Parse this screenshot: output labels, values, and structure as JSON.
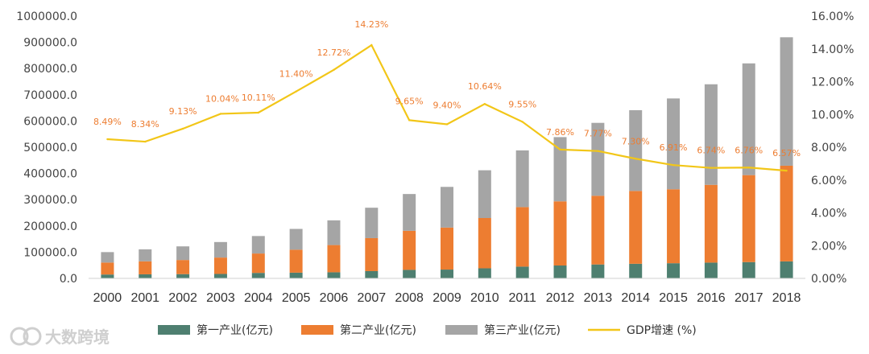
{
  "chart_data": {
    "type": "bar",
    "stacked": true,
    "categories": [
      "2000",
      "2001",
      "2002",
      "2003",
      "2004",
      "2005",
      "2006",
      "2007",
      "2008",
      "2009",
      "2010",
      "2011",
      "2012",
      "2013",
      "2014",
      "2015",
      "2016",
      "2017",
      "2018"
    ],
    "series": [
      {
        "name": "第一产业(亿元)",
        "color": "#4e7f70",
        "values": [
          14717,
          15502,
          16190,
          16970,
          20904,
          21806,
          23317,
          27674,
          32464,
          33584,
          38430,
          44781,
          49084,
          53028,
          55626,
          57774,
          60139,
          62100,
          64734
        ]
      },
      {
        "name": "第二产业(亿元)",
        "color": "#ed7d31",
        "values": [
          45555,
          49512,
          53897,
          62436,
          73904,
          87598,
          103719,
          125831,
          149003,
          160172,
          191630,
          227039,
          244643,
          261956,
          277572,
          282040,
          296548,
          331581,
          364835
        ]
      },
      {
        "name": "第三产业(亿元)",
        "color": "#a5a5a5",
        "values": [
          39897,
          45701,
          51947,
          59115,
          66649,
          79191,
          94231,
          115925,
          140179,
          155058,
          182102,
          216099,
          244852,
          277948,
          308059,
          346150,
          383374,
          426000,
          489701
        ]
      }
    ],
    "line_series": {
      "name": "GDP增速 (%)",
      "color": "#f2c618",
      "values": [
        8.49,
        8.34,
        9.13,
        10.04,
        10.11,
        11.4,
        12.72,
        14.23,
        9.65,
        9.4,
        10.64,
        9.55,
        7.86,
        7.77,
        7.3,
        6.91,
        6.74,
        6.76,
        6.57
      ],
      "labels": [
        "8.49%",
        "8.34%",
        "9.13%",
        "10.04%",
        "10.11%",
        "11.40%",
        "12.72%",
        "14.23%",
        "9.65%",
        "9.40%",
        "10.64%",
        "9.55%",
        "7.86%",
        "7.77%",
        "7.30%",
        "6.91%",
        "6.74%",
        "6.76%",
        "6.57%"
      ]
    },
    "y_left": {
      "min": 0,
      "max": 1000000,
      "ticks": [
        "0.0",
        "100000.0",
        "200000.0",
        "300000.0",
        "400000.0",
        "500000.0",
        "600000.0",
        "700000.0",
        "800000.0",
        "900000.0",
        "1000000.0"
      ]
    },
    "y_right": {
      "min": 0,
      "max": 16,
      "ticks": [
        "0.00%",
        "2.00%",
        "4.00%",
        "6.00%",
        "8.00%",
        "10.00%",
        "12.00%",
        "14.00%",
        "16.00%"
      ]
    },
    "legend_position": "bottom",
    "grid": false
  },
  "legend": {
    "items": [
      "第一产业(亿元)",
      "第二产业(亿元)",
      "第三产业(亿元)",
      "GDP增速 (%)"
    ]
  },
  "watermark": {
    "text": "大数跨境"
  }
}
